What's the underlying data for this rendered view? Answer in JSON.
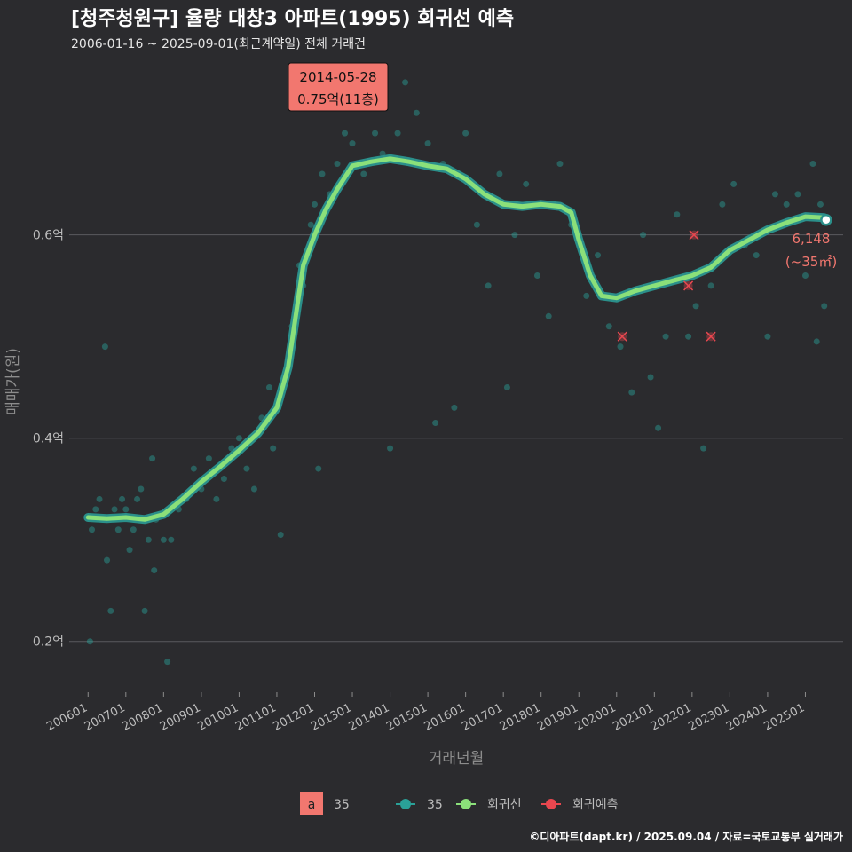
{
  "title": "[청주청원구] 율량 대창3 아파트(1995) 회귀선 예측",
  "subtitle": "2006-01-16 ~ 2025-09-01(최근계약일) 전체 거래건",
  "caption": "©디아파트(dapt.kr) / 2025.09.04 / 자료=국토교통부 실거래가",
  "colors": {
    "background": "#2b2b2e",
    "point": "#2aa198",
    "line": "#8be07a",
    "line_outline": "#2b8f8a",
    "predict": "#e8474f",
    "tooltip_bg": "#f2776f"
  },
  "tooltip": {
    "date": "2014-05-28",
    "value": "0.75억(11층)"
  },
  "end_label": {
    "value": "6,148",
    "area": "(~35㎡)"
  },
  "legend": {
    "area_key": "a",
    "area_label": "35",
    "items": [
      "35",
      "회귀선",
      "회귀예측"
    ]
  },
  "chart_data": {
    "type": "scatter",
    "title": "[청주청원구] 율량 대창3 아파트(1995) 회귀선 예측",
    "xlabel": "거래년월",
    "ylabel": "매매가(원)",
    "ylim": [
      0.15,
      0.77
    ],
    "xlim": [
      2005.5,
      2026.0
    ],
    "y_ticks": [
      {
        "v": 0.2,
        "label": "0.2억"
      },
      {
        "v": 0.4,
        "label": "0.4억"
      },
      {
        "v": 0.6,
        "label": "0.6억"
      }
    ],
    "x_ticks": [
      {
        "v": 2006,
        "label": "200601"
      },
      {
        "v": 2007,
        "label": "200701"
      },
      {
        "v": 2008,
        "label": "200801"
      },
      {
        "v": 2009,
        "label": "200901"
      },
      {
        "v": 2010,
        "label": "201001"
      },
      {
        "v": 2011,
        "label": "201101"
      },
      {
        "v": 2012,
        "label": "201201"
      },
      {
        "v": 2013,
        "label": "201301"
      },
      {
        "v": 2014,
        "label": "201401"
      },
      {
        "v": 2015,
        "label": "201501"
      },
      {
        "v": 2016,
        "label": "201601"
      },
      {
        "v": 2017,
        "label": "201701"
      },
      {
        "v": 2018,
        "label": "201801"
      },
      {
        "v": 2019,
        "label": "201901"
      },
      {
        "v": 2020,
        "label": "202001"
      },
      {
        "v": 2021,
        "label": "202101"
      },
      {
        "v": 2022,
        "label": "202201"
      },
      {
        "v": 2023,
        "label": "202301"
      },
      {
        "v": 2024,
        "label": "202401"
      },
      {
        "v": 2025,
        "label": "202501"
      }
    ],
    "series": [
      {
        "name": "회귀선",
        "points": [
          [
            2006.0,
            0.322
          ],
          [
            2006.5,
            0.321
          ],
          [
            2007.0,
            0.322
          ],
          [
            2007.5,
            0.32
          ],
          [
            2008.0,
            0.325
          ],
          [
            2008.5,
            0.34
          ],
          [
            2009.0,
            0.357
          ],
          [
            2009.5,
            0.372
          ],
          [
            2010.0,
            0.388
          ],
          [
            2010.5,
            0.405
          ],
          [
            2011.0,
            0.43
          ],
          [
            2011.3,
            0.47
          ],
          [
            2011.5,
            0.52
          ],
          [
            2011.7,
            0.57
          ],
          [
            2012.0,
            0.6
          ],
          [
            2012.3,
            0.625
          ],
          [
            2012.6,
            0.645
          ],
          [
            2013.0,
            0.668
          ],
          [
            2013.5,
            0.672
          ],
          [
            2014.0,
            0.675
          ],
          [
            2014.5,
            0.672
          ],
          [
            2015.0,
            0.668
          ],
          [
            2015.5,
            0.665
          ],
          [
            2016.0,
            0.655
          ],
          [
            2016.5,
            0.64
          ],
          [
            2017.0,
            0.63
          ],
          [
            2017.5,
            0.628
          ],
          [
            2018.0,
            0.63
          ],
          [
            2018.5,
            0.628
          ],
          [
            2018.8,
            0.622
          ],
          [
            2019.0,
            0.595
          ],
          [
            2019.3,
            0.56
          ],
          [
            2019.6,
            0.54
          ],
          [
            2020.0,
            0.538
          ],
          [
            2020.5,
            0.545
          ],
          [
            2021.0,
            0.55
          ],
          [
            2021.5,
            0.555
          ],
          [
            2022.0,
            0.56
          ],
          [
            2022.5,
            0.568
          ],
          [
            2023.0,
            0.585
          ],
          [
            2023.5,
            0.595
          ],
          [
            2024.0,
            0.605
          ],
          [
            2024.5,
            0.612
          ],
          [
            2025.0,
            0.618
          ],
          [
            2025.5,
            0.617
          ]
        ]
      },
      {
        "name": "35",
        "points": [
          [
            2006.05,
            0.2
          ],
          [
            2006.1,
            0.31
          ],
          [
            2006.2,
            0.33
          ],
          [
            2006.3,
            0.34
          ],
          [
            2006.4,
            0.32
          ],
          [
            2006.45,
            0.49
          ],
          [
            2006.5,
            0.28
          ],
          [
            2006.6,
            0.23
          ],
          [
            2006.7,
            0.33
          ],
          [
            2006.8,
            0.31
          ],
          [
            2006.9,
            0.34
          ],
          [
            2007.0,
            0.33
          ],
          [
            2007.1,
            0.29
          ],
          [
            2007.2,
            0.31
          ],
          [
            2007.3,
            0.34
          ],
          [
            2007.4,
            0.35
          ],
          [
            2007.5,
            0.23
          ],
          [
            2007.6,
            0.3
          ],
          [
            2007.7,
            0.38
          ],
          [
            2007.75,
            0.27
          ],
          [
            2007.8,
            0.32
          ],
          [
            2008.0,
            0.3
          ],
          [
            2008.1,
            0.18
          ],
          [
            2008.2,
            0.3
          ],
          [
            2008.4,
            0.33
          ],
          [
            2008.6,
            0.34
          ],
          [
            2008.8,
            0.37
          ],
          [
            2009.0,
            0.35
          ],
          [
            2009.2,
            0.38
          ],
          [
            2009.4,
            0.34
          ],
          [
            2009.6,
            0.36
          ],
          [
            2009.8,
            0.39
          ],
          [
            2010.0,
            0.4
          ],
          [
            2010.2,
            0.37
          ],
          [
            2010.4,
            0.35
          ],
          [
            2010.6,
            0.42
          ],
          [
            2010.8,
            0.45
          ],
          [
            2010.9,
            0.39
          ],
          [
            2011.0,
            0.43
          ],
          [
            2011.1,
            0.305
          ],
          [
            2011.2,
            0.46
          ],
          [
            2011.4,
            0.51
          ],
          [
            2011.6,
            0.57
          ],
          [
            2011.7,
            0.55
          ],
          [
            2011.9,
            0.61
          ],
          [
            2012.0,
            0.63
          ],
          [
            2012.1,
            0.37
          ],
          [
            2012.2,
            0.66
          ],
          [
            2012.4,
            0.64
          ],
          [
            2012.6,
            0.67
          ],
          [
            2012.8,
            0.7
          ],
          [
            2013.0,
            0.69
          ],
          [
            2013.3,
            0.66
          ],
          [
            2013.6,
            0.7
          ],
          [
            2013.8,
            0.68
          ],
          [
            2014.0,
            0.39
          ],
          [
            2014.2,
            0.7
          ],
          [
            2014.4,
            0.75
          ],
          [
            2014.7,
            0.72
          ],
          [
            2015.0,
            0.69
          ],
          [
            2015.2,
            0.415
          ],
          [
            2015.4,
            0.67
          ],
          [
            2015.7,
            0.43
          ],
          [
            2016.0,
            0.7
          ],
          [
            2016.3,
            0.61
          ],
          [
            2016.6,
            0.55
          ],
          [
            2016.9,
            0.66
          ],
          [
            2017.1,
            0.45
          ],
          [
            2017.3,
            0.6
          ],
          [
            2017.6,
            0.65
          ],
          [
            2017.9,
            0.56
          ],
          [
            2018.2,
            0.52
          ],
          [
            2018.5,
            0.67
          ],
          [
            2018.8,
            0.61
          ],
          [
            2019.2,
            0.54
          ],
          [
            2019.5,
            0.58
          ],
          [
            2019.8,
            0.51
          ],
          [
            2020.1,
            0.49
          ],
          [
            2020.4,
            0.445
          ],
          [
            2020.7,
            0.6
          ],
          [
            2020.9,
            0.46
          ],
          [
            2021.1,
            0.41
          ],
          [
            2021.3,
            0.5
          ],
          [
            2021.6,
            0.62
          ],
          [
            2021.9,
            0.5
          ],
          [
            2022.1,
            0.53
          ],
          [
            2022.3,
            0.39
          ],
          [
            2022.5,
            0.55
          ],
          [
            2022.8,
            0.63
          ],
          [
            2023.1,
            0.65
          ],
          [
            2023.4,
            0.59
          ],
          [
            2023.7,
            0.58
          ],
          [
            2024.0,
            0.5
          ],
          [
            2024.2,
            0.64
          ],
          [
            2024.5,
            0.63
          ],
          [
            2024.8,
            0.64
          ],
          [
            2025.0,
            0.56
          ],
          [
            2025.2,
            0.67
          ],
          [
            2025.3,
            0.495
          ],
          [
            2025.4,
            0.63
          ],
          [
            2025.5,
            0.53
          ]
        ]
      },
      {
        "name": "회귀예측",
        "points": [
          [
            2020.15,
            0.5
          ],
          [
            2021.9,
            0.55
          ],
          [
            2022.05,
            0.6
          ],
          [
            2022.5,
            0.5
          ]
        ]
      }
    ],
    "last_point": [
      2025.55,
      0.6148
    ]
  }
}
